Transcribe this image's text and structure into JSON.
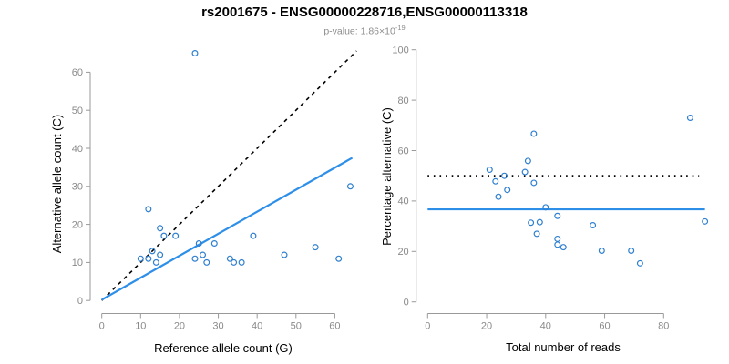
{
  "title": "rs2001675 - ENSG00000228716,ENSG00000113318",
  "subtitle": {
    "text": "p-value: 1.86×10",
    "exponent": "-19"
  },
  "colors": {
    "points": "#2E7FD0",
    "fit_line": "#2E8FE8",
    "reference_line": "#000000",
    "axis": "#999999",
    "tick_text": "#8a8a8a",
    "subtitle_text": "#8c8c8c"
  },
  "chart_data": [
    {
      "type": "scatter",
      "position": "left",
      "xlabel": "Reference allele count (G)",
      "ylabel": "Alternative allele count (C)",
      "xticks": [
        0,
        10,
        20,
        30,
        40,
        50,
        60
      ],
      "yticks": [
        0,
        10,
        20,
        30,
        40,
        50,
        60
      ],
      "xlim": [
        0,
        66
      ],
      "ylim": [
        0,
        66
      ],
      "grid": false,
      "points": [
        [
          10,
          11
        ],
        [
          12,
          11
        ],
        [
          13,
          13
        ],
        [
          14,
          10
        ],
        [
          15,
          12
        ],
        [
          16,
          17
        ],
        [
          15,
          19
        ],
        [
          12,
          24
        ],
        [
          19,
          17
        ],
        [
          24,
          65
        ],
        [
          24,
          11
        ],
        [
          26,
          12
        ],
        [
          27,
          10
        ],
        [
          25,
          15
        ],
        [
          29,
          15
        ],
        [
          33,
          11
        ],
        [
          34,
          10
        ],
        [
          36,
          10
        ],
        [
          39,
          17
        ],
        [
          47,
          12
        ],
        [
          55,
          14
        ],
        [
          61,
          11
        ],
        [
          64,
          30
        ]
      ],
      "lines": [
        {
          "name": "identity-line",
          "style": "dashed",
          "color": "#000000",
          "from": [
            0,
            0
          ],
          "to": [
            65.6,
            65.6
          ]
        },
        {
          "name": "regression-line",
          "style": "solid",
          "color": "#2E8FE8",
          "from": [
            0,
            0.2
          ],
          "to": [
            64.5,
            37.5
          ]
        }
      ]
    },
    {
      "type": "scatter",
      "position": "right",
      "xlabel": "Total number of reads",
      "ylabel": "Percentage alternative (C)",
      "xticks": [
        0,
        20,
        40,
        60,
        80
      ],
      "yticks": [
        0,
        20,
        40,
        60,
        80,
        100
      ],
      "xlim": [
        0,
        97
      ],
      "ylim": [
        0,
        100
      ],
      "grid": false,
      "points": [
        [
          21,
          52.4
        ],
        [
          23,
          47.8
        ],
        [
          26,
          50
        ],
        [
          24,
          41.7
        ],
        [
          27,
          44.4
        ],
        [
          33,
          51.5
        ],
        [
          34,
          55.9
        ],
        [
          36,
          66.7
        ],
        [
          36,
          47.2
        ],
        [
          89,
          73
        ],
        [
          35,
          31.4
        ],
        [
          38,
          31.6
        ],
        [
          37,
          27
        ],
        [
          40,
          37.5
        ],
        [
          44,
          34.1
        ],
        [
          44,
          25
        ],
        [
          44,
          22.7
        ],
        [
          46,
          21.7
        ],
        [
          56,
          30.4
        ],
        [
          59,
          20.3
        ],
        [
          69,
          20.3
        ],
        [
          72,
          15.3
        ],
        [
          94,
          31.9
        ]
      ],
      "lines": [
        {
          "name": "fifty-percent-line",
          "style": "dotted",
          "color": "#000000",
          "from": [
            0,
            50
          ],
          "to": [
            92,
            50
          ]
        },
        {
          "name": "mean-percentage-line",
          "style": "solid",
          "color": "#2E8FE8",
          "from": [
            0,
            36.7
          ],
          "to": [
            94,
            36.7
          ]
        }
      ]
    }
  ]
}
